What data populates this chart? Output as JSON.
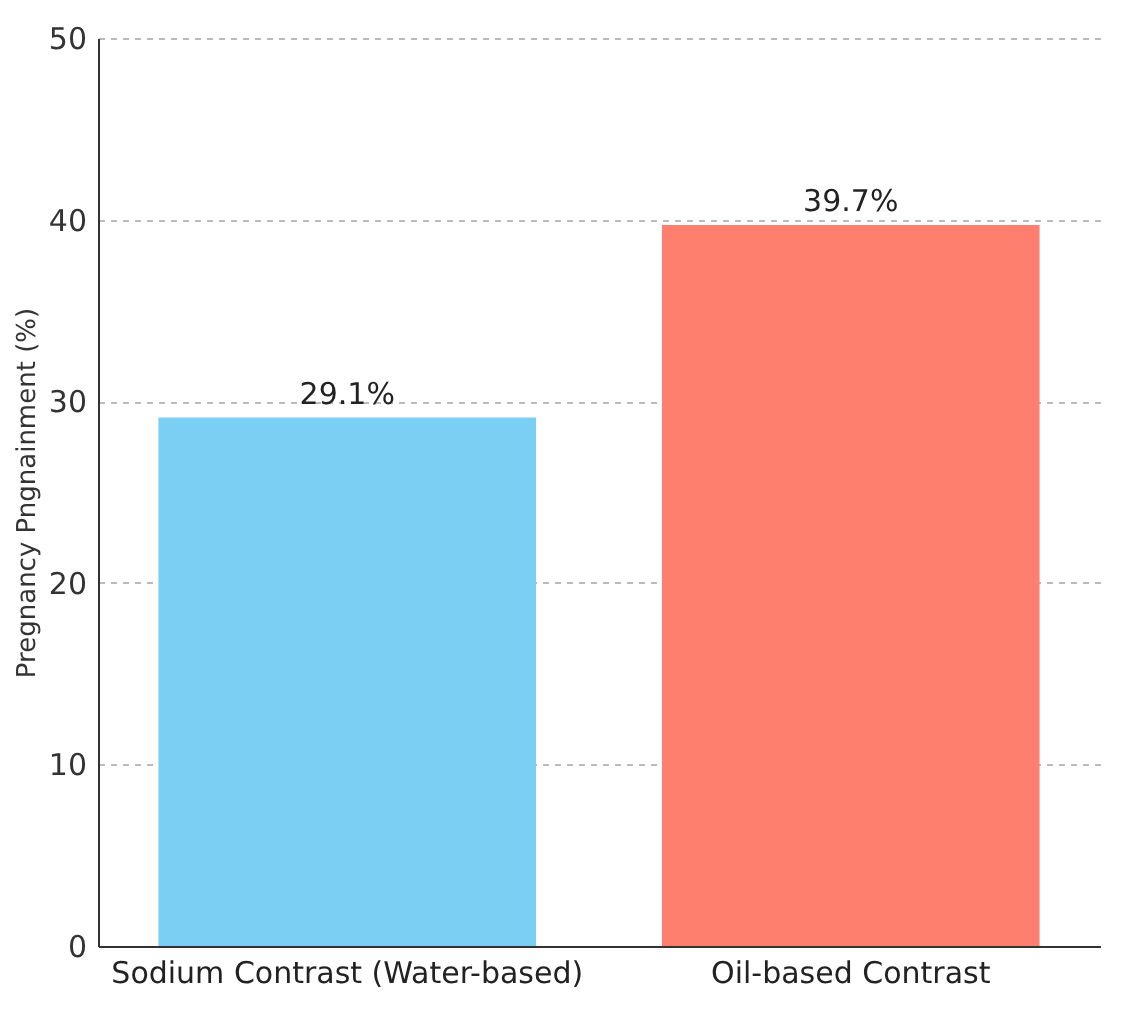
{
  "chart_data": {
    "type": "bar",
    "ylabel": "Pregnancy Pngnainment (%)",
    "categories": [
      "Sodium Contrast (Water-based)",
      "Oil-based Contrast"
    ],
    "values": [
      29.1,
      39.7
    ],
    "colors": [
      "#7acff2",
      "#ff7f6e"
    ],
    "value_labels": [
      "29.1%",
      "39.7%"
    ],
    "ylim": [
      0,
      50
    ],
    "yticks": [
      0,
      10,
      20,
      30,
      40,
      50
    ],
    "grid": "y"
  }
}
